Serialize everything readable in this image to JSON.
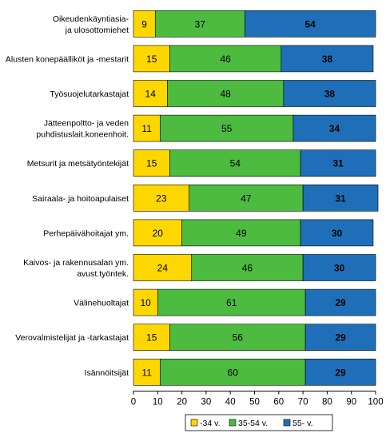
{
  "chart_data": {
    "type": "bar",
    "orientation": "horizontal",
    "stacked": true,
    "categories": [
      "Oikeudenkäyntiasia- ja ulosottomiehet",
      "Alusten konepäälliköt ja -mestarit",
      "Työsuojelutarkastajat",
      "Jätteenpoltto- ja veden puhdistuslait.koneenhoit.",
      "Metsurit ja metsätyöntekijät",
      "Sairaala- ja hoitoapulaiset",
      "Perhepäivähoitajat ym.",
      "Kaivos- ja rakennusalan ym. avust.työntek.",
      "Välinehuoltajat",
      "Verovalmistelijat ja -tarkastajat",
      "Isännöitsijät"
    ],
    "category_lines": [
      [
        "Oikeudenkäyntiasia-",
        "ja ulosottomiehet"
      ],
      [
        "Alusten konepäälliköt ja -mestarit"
      ],
      [
        "Työsuojelutarkastajat"
      ],
      [
        "Jätteenpoltto- ja veden",
        "puhdistuslait.koneenhoit."
      ],
      [
        "Metsurit ja metsätyöntekijät"
      ],
      [
        "Sairaala- ja hoitoapulaiset"
      ],
      [
        "Perhepäivähoitajat ym."
      ],
      [
        "Kaivos- ja rakennusalan ym.",
        "avust.työntek."
      ],
      [
        "Välinehuoltajat"
      ],
      [
        "Verovalmistelijat ja -tarkastajat"
      ],
      [
        "Isännöitsijät"
      ]
    ],
    "series": [
      {
        "name": "-34 v.",
        "color": "#FFD700",
        "bold_labels": false,
        "values": [
          9,
          15,
          14,
          11,
          15,
          23,
          20,
          24,
          10,
          15,
          11
        ]
      },
      {
        "name": "35-54 v.",
        "color": "#4CBB3F",
        "bold_labels": false,
        "values": [
          37,
          46,
          48,
          55,
          54,
          47,
          49,
          46,
          61,
          56,
          60
        ]
      },
      {
        "name": "55- v.",
        "color": "#1F6FB8",
        "bold_labels": true,
        "values": [
          54,
          38,
          38,
          34,
          31,
          31,
          30,
          30,
          29,
          29,
          29
        ]
      }
    ],
    "xlim": [
      0,
      100
    ],
    "xticks": [
      0,
      10,
      20,
      30,
      40,
      50,
      60,
      70,
      80,
      90,
      100
    ],
    "grid": false,
    "legend_position": "bottom"
  }
}
